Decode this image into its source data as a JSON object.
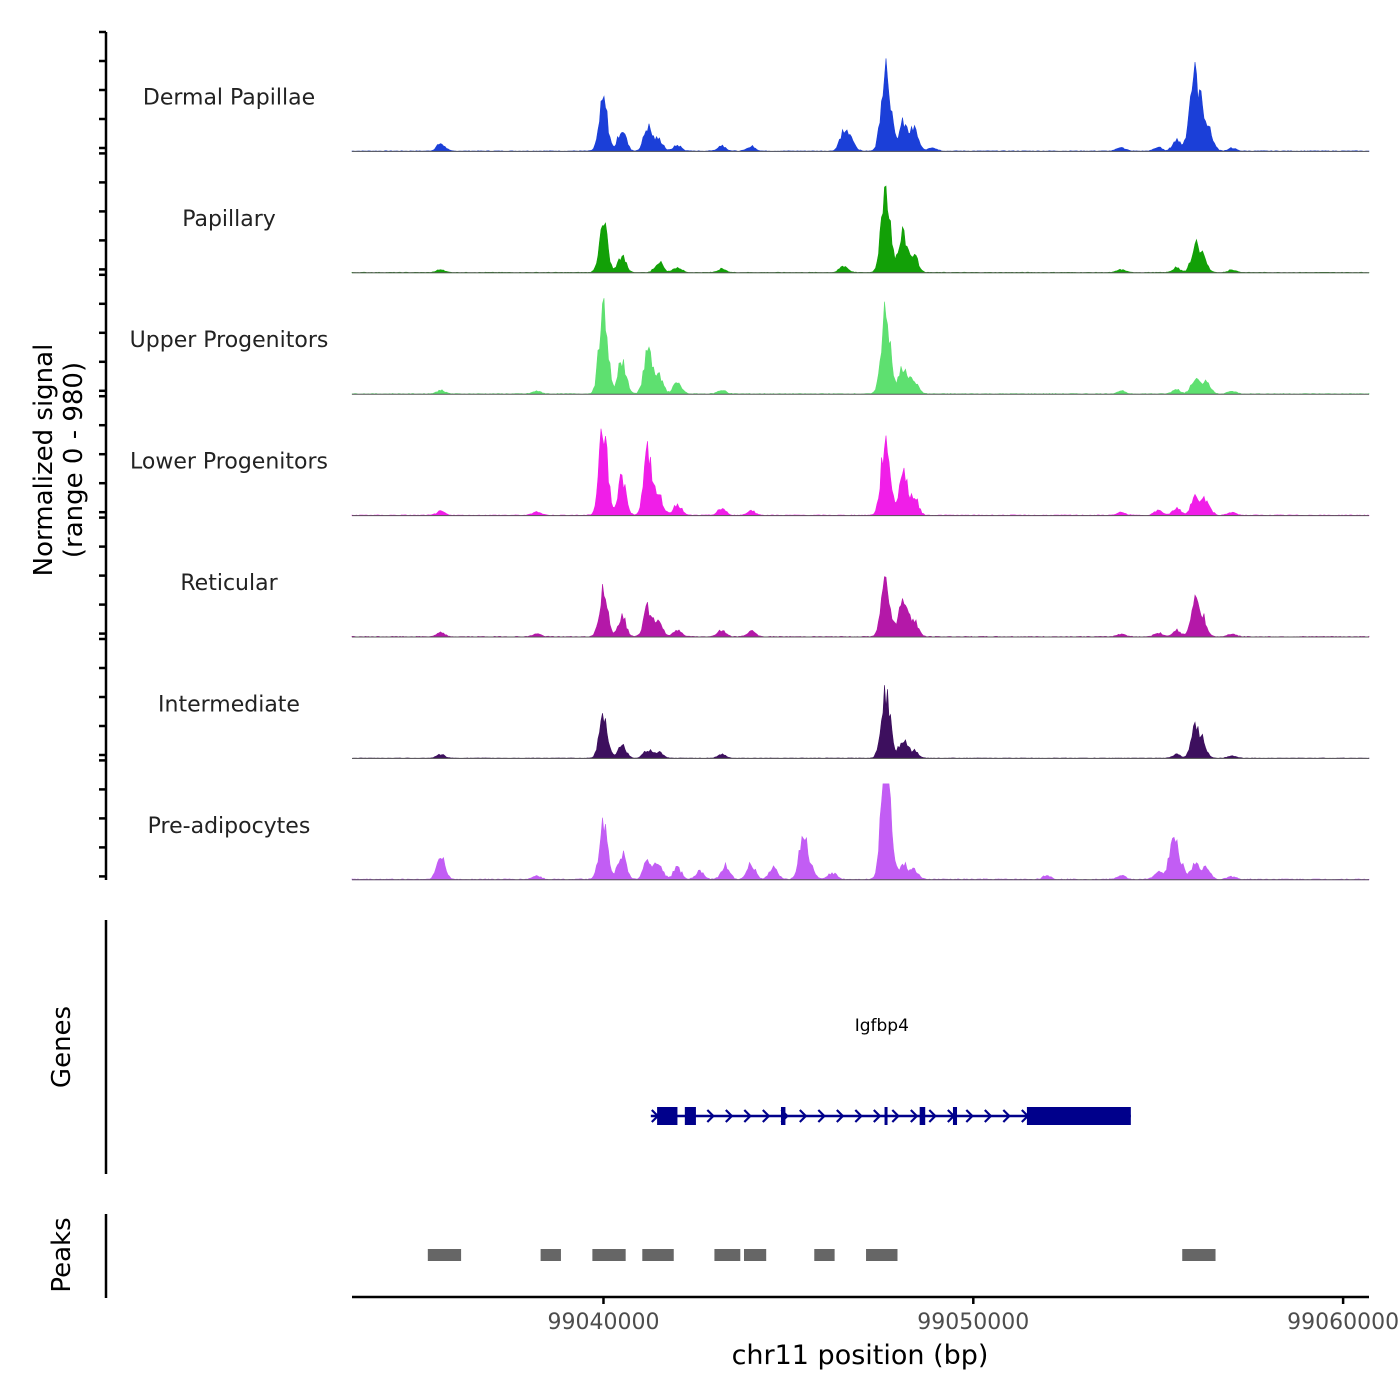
{
  "chart_data": {
    "type": "area",
    "ylabel_line1": "Normalized signal",
    "ylabel_line2": "(range 0 - 980)",
    "xlabel": "chr11 position (bp)",
    "xlim": [
      99033200,
      99060700
    ],
    "xticks": [
      {
        "value": 99040000,
        "label": "99040000"
      },
      {
        "value": 99050000,
        "label": "99050000"
      },
      {
        "value": 99060000,
        "label": "99060000"
      }
    ],
    "signal_range": [
      0,
      980
    ],
    "series": [
      {
        "name": "Dermal Papillae",
        "color": "#1b3fd8",
        "baseline": 30,
        "peaks": [
          {
            "x": 99035600,
            "h": 80
          },
          {
            "x": 99040000,
            "h": 530
          },
          {
            "x": 99040500,
            "h": 230
          },
          {
            "x": 99041200,
            "h": 260
          },
          {
            "x": 99041500,
            "h": 120
          },
          {
            "x": 99042000,
            "h": 60
          },
          {
            "x": 99043200,
            "h": 60
          },
          {
            "x": 99044000,
            "h": 50
          },
          {
            "x": 99046500,
            "h": 200
          },
          {
            "x": 99046700,
            "h": 100
          },
          {
            "x": 99047600,
            "h": 650
          },
          {
            "x": 99047700,
            "h": 400
          },
          {
            "x": 99048100,
            "h": 290
          },
          {
            "x": 99048400,
            "h": 230
          },
          {
            "x": 99048900,
            "h": 40
          },
          {
            "x": 99054000,
            "h": 40
          },
          {
            "x": 99055000,
            "h": 40
          },
          {
            "x": 99055500,
            "h": 120
          },
          {
            "x": 99055900,
            "h": 340
          },
          {
            "x": 99056000,
            "h": 510
          },
          {
            "x": 99056200,
            "h": 350
          },
          {
            "x": 99056400,
            "h": 150
          },
          {
            "x": 99057000,
            "h": 30
          }
        ]
      },
      {
        "name": "Papillary",
        "color": "#12a007",
        "baseline": 25,
        "peaks": [
          {
            "x": 99035600,
            "h": 30
          },
          {
            "x": 99040000,
            "h": 500
          },
          {
            "x": 99040500,
            "h": 170
          },
          {
            "x": 99041500,
            "h": 110
          },
          {
            "x": 99042000,
            "h": 60
          },
          {
            "x": 99043200,
            "h": 40
          },
          {
            "x": 99046500,
            "h": 70
          },
          {
            "x": 99047600,
            "h": 660
          },
          {
            "x": 99047700,
            "h": 350
          },
          {
            "x": 99048100,
            "h": 400
          },
          {
            "x": 99048400,
            "h": 180
          },
          {
            "x": 99054000,
            "h": 30
          },
          {
            "x": 99055500,
            "h": 50
          },
          {
            "x": 99056000,
            "h": 260
          },
          {
            "x": 99056200,
            "h": 160
          },
          {
            "x": 99057000,
            "h": 30
          }
        ]
      },
      {
        "name": "Upper Progenitors",
        "color": "#5ee070",
        "baseline": 30,
        "peaks": [
          {
            "x": 99035600,
            "h": 40
          },
          {
            "x": 99038200,
            "h": 30
          },
          {
            "x": 99040000,
            "h": 980
          },
          {
            "x": 99040500,
            "h": 350
          },
          {
            "x": 99041200,
            "h": 450
          },
          {
            "x": 99041500,
            "h": 180
          },
          {
            "x": 99042000,
            "h": 120
          },
          {
            "x": 99043200,
            "h": 40
          },
          {
            "x": 99047600,
            "h": 620
          },
          {
            "x": 99047700,
            "h": 300
          },
          {
            "x": 99048100,
            "h": 280
          },
          {
            "x": 99048400,
            "h": 150
          },
          {
            "x": 99054000,
            "h": 30
          },
          {
            "x": 99055500,
            "h": 50
          },
          {
            "x": 99056000,
            "h": 150
          },
          {
            "x": 99056300,
            "h": 120
          },
          {
            "x": 99057000,
            "h": 30
          }
        ]
      },
      {
        "name": "Lower Progenitors",
        "color": "#f01ee8",
        "baseline": 30,
        "peaks": [
          {
            "x": 99035600,
            "h": 40
          },
          {
            "x": 99038200,
            "h": 40
          },
          {
            "x": 99040000,
            "h": 960
          },
          {
            "x": 99040500,
            "h": 390
          },
          {
            "x": 99041200,
            "h": 650
          },
          {
            "x": 99041500,
            "h": 200
          },
          {
            "x": 99042000,
            "h": 120
          },
          {
            "x": 99043200,
            "h": 70
          },
          {
            "x": 99044000,
            "h": 50
          },
          {
            "x": 99047600,
            "h": 580
          },
          {
            "x": 99047700,
            "h": 300
          },
          {
            "x": 99048100,
            "h": 480
          },
          {
            "x": 99048400,
            "h": 200
          },
          {
            "x": 99054000,
            "h": 30
          },
          {
            "x": 99055000,
            "h": 50
          },
          {
            "x": 99055500,
            "h": 80
          },
          {
            "x": 99056000,
            "h": 200
          },
          {
            "x": 99056300,
            "h": 170
          },
          {
            "x": 99057000,
            "h": 30
          }
        ]
      },
      {
        "name": "Reticular",
        "color": "#b418a8",
        "baseline": 30,
        "peaks": [
          {
            "x": 99035600,
            "h": 40
          },
          {
            "x": 99038200,
            "h": 30
          },
          {
            "x": 99040000,
            "h": 480
          },
          {
            "x": 99040500,
            "h": 220
          },
          {
            "x": 99041200,
            "h": 300
          },
          {
            "x": 99041500,
            "h": 140
          },
          {
            "x": 99042000,
            "h": 70
          },
          {
            "x": 99043200,
            "h": 70
          },
          {
            "x": 99044000,
            "h": 60
          },
          {
            "x": 99047600,
            "h": 420
          },
          {
            "x": 99047700,
            "h": 230
          },
          {
            "x": 99048100,
            "h": 420
          },
          {
            "x": 99048400,
            "h": 170
          },
          {
            "x": 99054000,
            "h": 30
          },
          {
            "x": 99055000,
            "h": 40
          },
          {
            "x": 99055500,
            "h": 70
          },
          {
            "x": 99056000,
            "h": 350
          },
          {
            "x": 99056200,
            "h": 180
          },
          {
            "x": 99057000,
            "h": 30
          }
        ]
      },
      {
        "name": "Intermediate",
        "color": "#3d0f5e",
        "baseline": 20,
        "peaks": [
          {
            "x": 99035600,
            "h": 40
          },
          {
            "x": 99040000,
            "h": 430
          },
          {
            "x": 99040500,
            "h": 140
          },
          {
            "x": 99041200,
            "h": 90
          },
          {
            "x": 99041500,
            "h": 60
          },
          {
            "x": 99043200,
            "h": 40
          },
          {
            "x": 99047600,
            "h": 510
          },
          {
            "x": 99047700,
            "h": 270
          },
          {
            "x": 99048100,
            "h": 190
          },
          {
            "x": 99048400,
            "h": 80
          },
          {
            "x": 99055500,
            "h": 40
          },
          {
            "x": 99056000,
            "h": 300
          },
          {
            "x": 99056200,
            "h": 150
          },
          {
            "x": 99057000,
            "h": 30
          }
        ]
      },
      {
        "name": "Pre-adipocytes",
        "color": "#c25df4",
        "baseline": 40,
        "peaks": [
          {
            "x": 99035600,
            "h": 240
          },
          {
            "x": 99038200,
            "h": 40
          },
          {
            "x": 99040000,
            "h": 570
          },
          {
            "x": 99040500,
            "h": 280
          },
          {
            "x": 99041200,
            "h": 200
          },
          {
            "x": 99041500,
            "h": 160
          },
          {
            "x": 99042000,
            "h": 120
          },
          {
            "x": 99042600,
            "h": 90
          },
          {
            "x": 99043300,
            "h": 150
          },
          {
            "x": 99044000,
            "h": 160
          },
          {
            "x": 99044600,
            "h": 130
          },
          {
            "x": 99045400,
            "h": 460
          },
          {
            "x": 99045600,
            "h": 100
          },
          {
            "x": 99046200,
            "h": 70
          },
          {
            "x": 99047600,
            "h": 980
          },
          {
            "x": 99047700,
            "h": 700
          },
          {
            "x": 99048100,
            "h": 160
          },
          {
            "x": 99048400,
            "h": 100
          },
          {
            "x": 99052000,
            "h": 40
          },
          {
            "x": 99054000,
            "h": 40
          },
          {
            "x": 99055000,
            "h": 80
          },
          {
            "x": 99055400,
            "h": 400
          },
          {
            "x": 99055600,
            "h": 150
          },
          {
            "x": 99056000,
            "h": 170
          },
          {
            "x": 99056300,
            "h": 120
          },
          {
            "x": 99057000,
            "h": 30
          }
        ]
      }
    ],
    "genes": {
      "label": "Genes",
      "color": "#00008b",
      "items": [
        {
          "name": "Igfbp4",
          "strand": "+",
          "start": 99041280,
          "end": 99054260,
          "exons": [
            {
              "start": 99041450,
              "end": 99042000
            },
            {
              "start": 99042200,
              "end": 99042500
            },
            {
              "start": 99044800,
              "end": 99044920
            },
            {
              "start": 99047600,
              "end": 99047680
            },
            {
              "start": 99048550,
              "end": 99048700
            },
            {
              "start": 99049450,
              "end": 99049560
            },
            {
              "start": 99051450,
              "end": 99054260
            }
          ]
        }
      ]
    },
    "peaks": {
      "label": "Peaks",
      "color": "#666666",
      "regions": [
        {
          "start": 99035250,
          "end": 99036150
        },
        {
          "start": 99038300,
          "end": 99038850
        },
        {
          "start": 99039700,
          "end": 99040600
        },
        {
          "start": 99041050,
          "end": 99041900
        },
        {
          "start": 99043000,
          "end": 99043700
        },
        {
          "start": 99043800,
          "end": 99044400
        },
        {
          "start": 99045700,
          "end": 99046250
        },
        {
          "start": 99047100,
          "end": 99047950
        },
        {
          "start": 99055650,
          "end": 99056550
        }
      ]
    }
  }
}
